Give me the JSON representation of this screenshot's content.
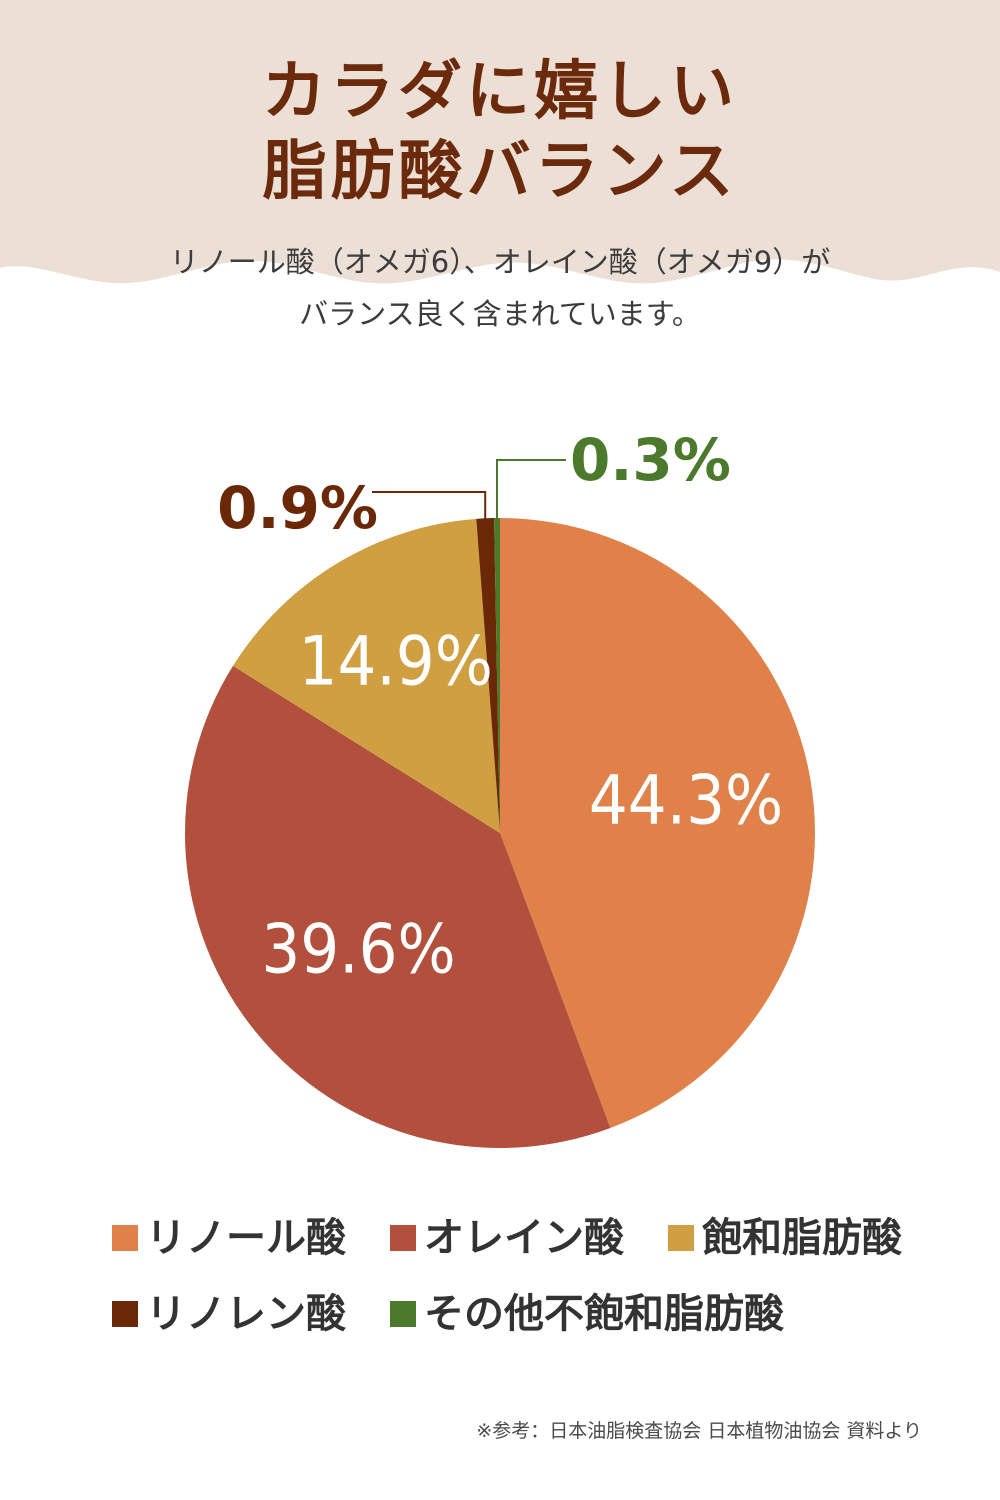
{
  "title": {
    "line1": "カラダに嬉しい",
    "line2": "脂肪酸バランス"
  },
  "subtitle": {
    "line1": "リノール酸（オメガ6）、オレイン酸（オメガ9）が",
    "line2": "バランス良く含まれています。"
  },
  "colors": {
    "header_bg": "#ece0d6",
    "title": "#6b2a0c"
  },
  "chart_data": {
    "type": "pie",
    "categories": [
      "リノール酸",
      "オレイン酸",
      "飽和脂肪酸",
      "リノレン酸",
      "その他不飽和脂肪酸"
    ],
    "values": [
      44.3,
      39.6,
      14.9,
      0.9,
      0.3
    ],
    "labels": [
      "44.3%",
      "39.6%",
      "14.9%",
      "0.9%",
      "0.3%"
    ],
    "colors": [
      "#e08149",
      "#b24f3d",
      "#cf9f42",
      "#6b2806",
      "#4c7a2c"
    ],
    "legend": "bottom"
  },
  "footnote": "※参考：日本油脂検査協会 日本植物油協会 資料より"
}
